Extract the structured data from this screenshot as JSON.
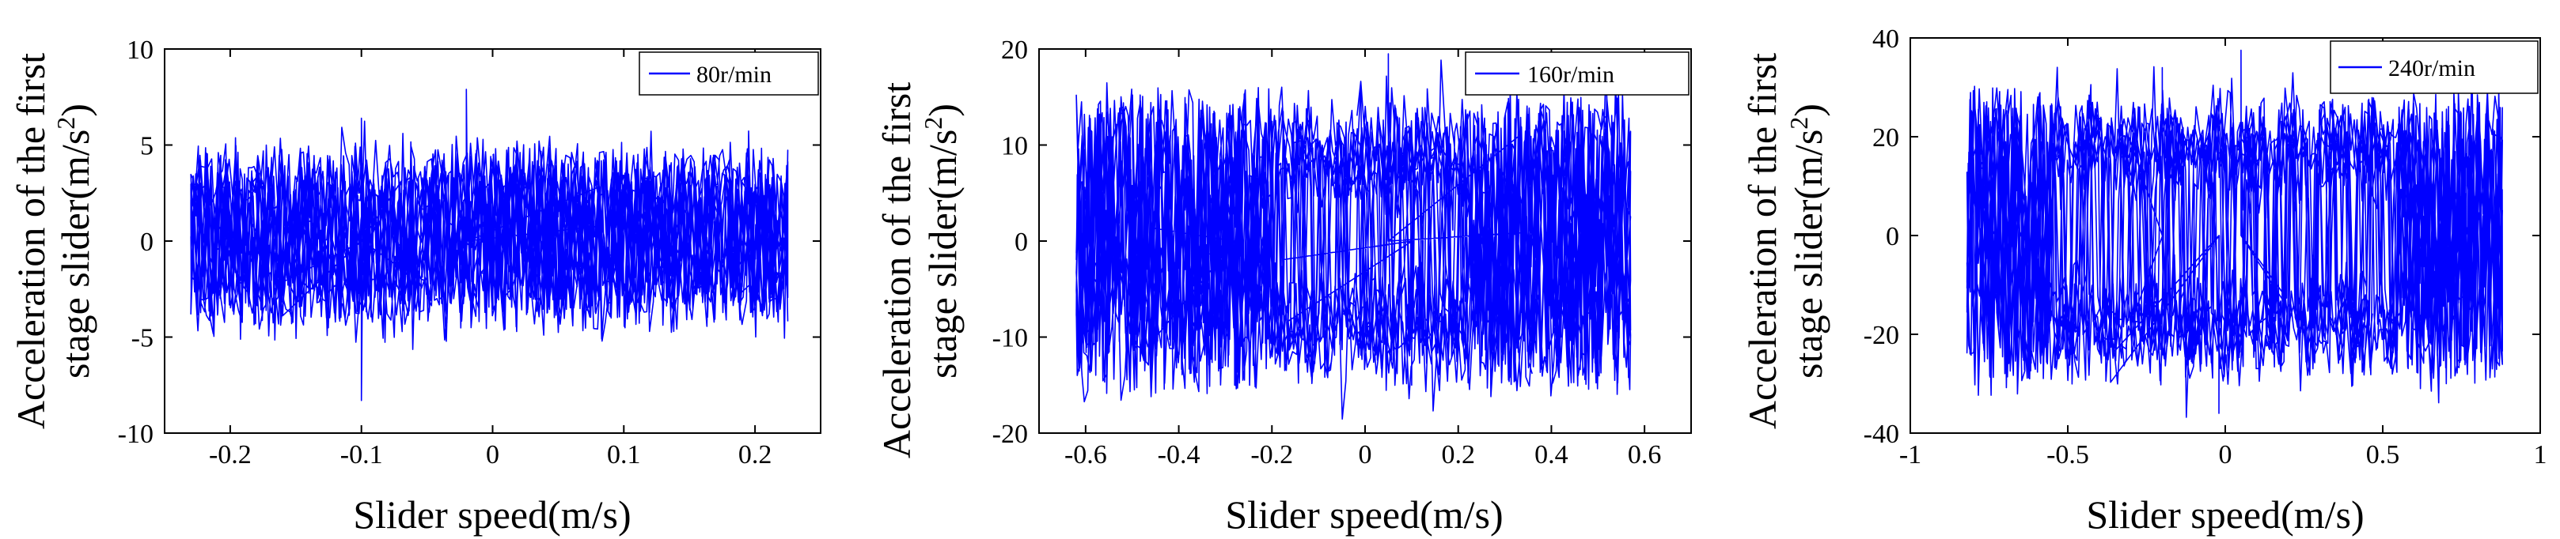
{
  "figure": {
    "description_label": "Acceleration vs slider speed phase plots"
  },
  "chart_data": [
    {
      "type": "scatter",
      "title": "",
      "xlabel": "Slider speed(m/s)",
      "ylabel_line1": "Acceleration of the first",
      "ylabel_line2_prefix": "stage slider(m/s",
      "ylabel_line2_sup": "2",
      "ylabel_line2_suffix": ")",
      "xlim": [
        -0.25,
        0.25
      ],
      "ylim": [
        -10,
        10
      ],
      "xticks": [
        -0.2,
        -0.1,
        0,
        0.1,
        0.2
      ],
      "xtick_labels": [
        "-0.2",
        "-0.1",
        "0",
        "0.1",
        "0.2"
      ],
      "yticks": [
        -10,
        -5,
        0,
        5,
        10
      ],
      "ytick_labels": [
        "-10",
        "-5",
        "0",
        "5",
        "10"
      ],
      "legend": {
        "label": "80r/min",
        "placement": "top-right"
      },
      "series": [
        {
          "name": "80r/min",
          "color": "#0000ff",
          "x_range": [
            -0.23,
            0.225
          ],
          "shape": "band",
          "envelope_upper": 5.0,
          "envelope_lower": -4.5,
          "spikes": [
            [
              -0.1,
              -8.3
            ],
            [
              -0.02,
              7.9
            ],
            [
              -0.1,
              6.4
            ]
          ]
        }
      ]
    },
    {
      "type": "scatter",
      "title": "",
      "xlabel": "Slider speed(m/s)",
      "ylabel_line1": "Acceleration of the first",
      "ylabel_line2_prefix": "stage slider(m/s",
      "ylabel_line2_sup": "2",
      "ylabel_line2_suffix": ")",
      "xlim": [
        -0.7,
        0.7
      ],
      "ylim": [
        -20,
        20
      ],
      "xticks": [
        -0.6,
        -0.4,
        -0.2,
        0,
        0.2,
        0.4,
        0.6
      ],
      "xtick_labels": [
        "-0.6",
        "-0.4",
        "-0.2",
        "0",
        "0.2",
        "0.4",
        "0.6"
      ],
      "yticks": [
        -20,
        -10,
        0,
        10,
        20
      ],
      "ytick_labels": [
        "-20",
        "-10",
        "0",
        "10",
        "20"
      ],
      "legend": {
        "label": "160r/min",
        "placement": "top-right"
      },
      "series": [
        {
          "name": "160r/min",
          "color": "#0000ff",
          "x_range": [
            -0.62,
            0.57
          ],
          "shape": "ring",
          "ring_center": 9,
          "ring_spread": 5,
          "hole_x": [
            -0.2,
            0.22
          ],
          "spikes": [
            [
              0.05,
              19.5
            ],
            [
              -0.28,
              -15
            ],
            [
              0.1,
              -15
            ]
          ]
        }
      ]
    },
    {
      "type": "scatter",
      "title": "",
      "xlabel": "Slider speed(m/s)",
      "ylabel_line1": "Acceleration of the first",
      "ylabel_line2_prefix": "stage slider(m/s",
      "ylabel_line2_sup": "2",
      "ylabel_line2_suffix": ")",
      "xlim": [
        -1,
        1
      ],
      "ylim": [
        -40,
        40
      ],
      "xticks": [
        -1,
        -0.5,
        0,
        0.5,
        1
      ],
      "xtick_labels": [
        "-1",
        "-0.5",
        "0",
        "0.5",
        "1"
      ],
      "yticks": [
        -40,
        -20,
        0,
        20,
        40
      ],
      "ytick_labels": [
        "-40",
        "-20",
        "0",
        "20",
        "40"
      ],
      "legend": {
        "label": "240r/min",
        "placement": "top-right"
      },
      "series": [
        {
          "name": "240r/min",
          "color": "#0000ff",
          "x_range": [
            -0.82,
            0.88
          ],
          "shape": "ring",
          "ring_center": 18,
          "ring_spread": 9,
          "hole_x": [
            -0.55,
            0.55
          ],
          "spikes": [
            [
              0.05,
              37.5
            ],
            [
              -0.02,
              -36
            ],
            [
              -0.2,
              34
            ]
          ]
        }
      ]
    }
  ]
}
